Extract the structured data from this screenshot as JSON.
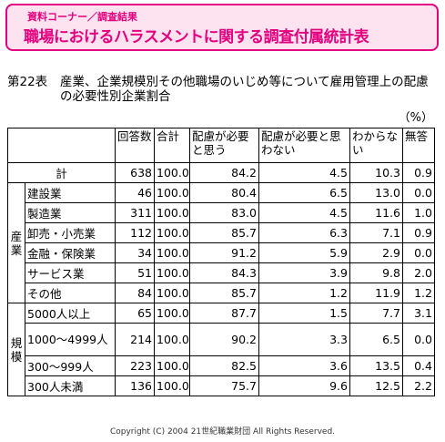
{
  "banner": {
    "kicker": "資料コーナー／調査結果",
    "title": "職場におけるハラスメントに関する調査付属統計表"
  },
  "table_title": {
    "number": "第22表",
    "text": "産業、企業規模別その他職場のいじめ等について雇用管理上の配慮の必要性別企業割合"
  },
  "unit": "（%）",
  "columns": [
    "回答数",
    "合計",
    "配慮が必要と思う",
    "配慮が必要と思わない",
    "わからない",
    "無答"
  ],
  "total_row": {
    "label": "計",
    "values": [
      "638",
      "100.0",
      "84.2",
      "4.5",
      "10.3",
      "0.9"
    ]
  },
  "groups": [
    {
      "name": "産業",
      "rows": [
        {
          "label": "建設業",
          "values": [
            "46",
            "100.0",
            "80.4",
            "6.5",
            "13.0",
            "0.0"
          ]
        },
        {
          "label": "製造業",
          "values": [
            "311",
            "100.0",
            "83.0",
            "4.5",
            "11.6",
            "1.0"
          ]
        },
        {
          "label": "卸売・小売業",
          "values": [
            "112",
            "100.0",
            "85.7",
            "6.3",
            "7.1",
            "0.9"
          ]
        },
        {
          "label": "金融・保険業",
          "values": [
            "34",
            "100.0",
            "91.2",
            "5.9",
            "2.9",
            "0.0"
          ]
        },
        {
          "label": "サービス業",
          "values": [
            "51",
            "100.0",
            "84.3",
            "3.9",
            "9.8",
            "2.0"
          ]
        },
        {
          "label": "その他",
          "values": [
            "84",
            "100.0",
            "85.7",
            "1.2",
            "11.9",
            "1.2"
          ]
        }
      ]
    },
    {
      "name": "規模",
      "rows": [
        {
          "label": "5000人以上",
          "values": [
            "65",
            "100.0",
            "87.7",
            "1.5",
            "7.7",
            "3.1"
          ]
        },
        {
          "label": "1000～4999人",
          "values": [
            "214",
            "100.0",
            "90.2",
            "3.3",
            "6.5",
            "0.0"
          ]
        },
        {
          "label": "300～999人",
          "values": [
            "223",
            "100.0",
            "82.5",
            "3.6",
            "13.5",
            "0.4"
          ]
        },
        {
          "label": "300人未満",
          "values": [
            "136",
            "100.0",
            "75.7",
            "9.6",
            "12.5",
            "2.2"
          ]
        }
      ]
    }
  ],
  "footer": "Copyright (C) 2004 21世紀職業財団 All Rights Reserved."
}
